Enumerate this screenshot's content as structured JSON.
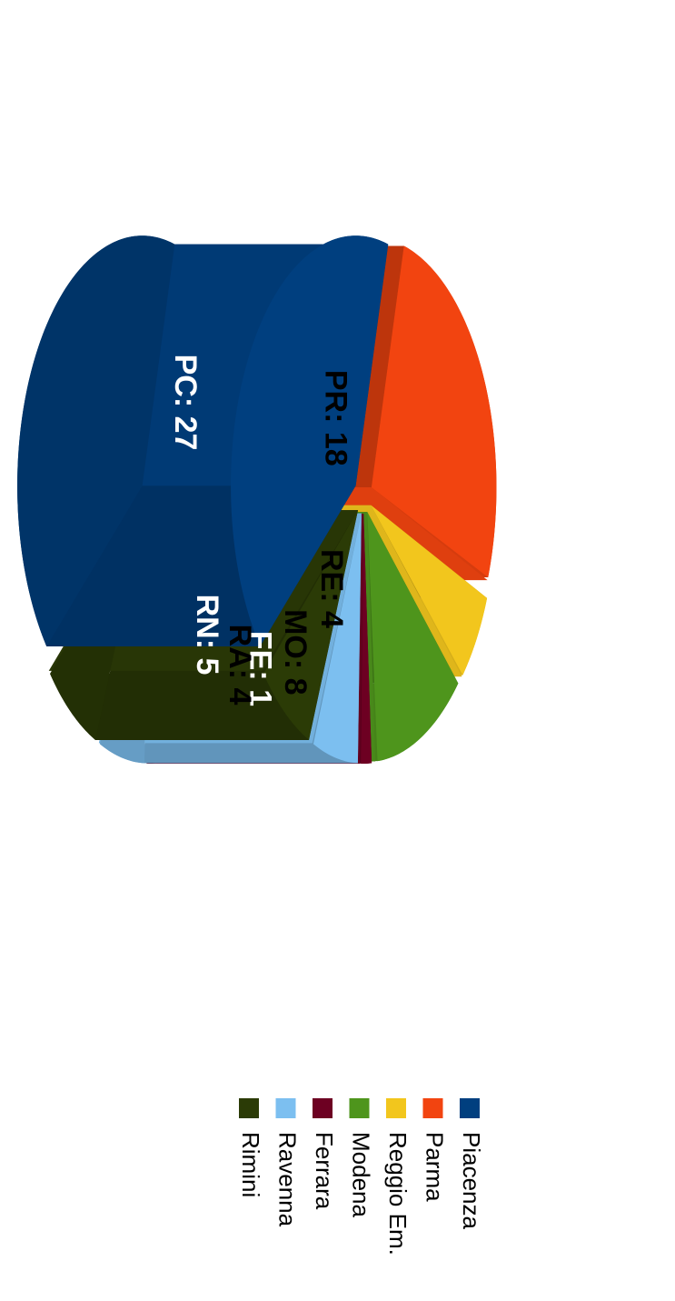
{
  "chart_data": {
    "type": "pie",
    "style": "3d-exploded",
    "orientation": "rotated 90 degrees clockwise",
    "slices": [
      {
        "code": "PC",
        "name": "Piacenza",
        "value": 27,
        "label": "PC: 27",
        "color": "#003f7f",
        "label_color": "#ffffff"
      },
      {
        "code": "PR",
        "name": "Parma",
        "value": 18,
        "label": "PR: 18",
        "color": "#f24410",
        "label_color": "#000000"
      },
      {
        "code": "RE",
        "name": "Reggio Em.",
        "value": 4,
        "label": "RE: 4",
        "color": "#f2c61d",
        "label_color": "#000000"
      },
      {
        "code": "MO",
        "name": "Modena",
        "value": 8,
        "label": "MO: 8",
        "color": "#4e951c",
        "label_color": "#000000"
      },
      {
        "code": "FE",
        "name": "Ferrara",
        "value": 1,
        "label": "FE: 1",
        "color": "#6d0022",
        "label_color": "#ffffff"
      },
      {
        "code": "RA",
        "name": "Ravenna",
        "value": 4,
        "label": "RA: 4",
        "color": "#7cbff0",
        "label_color": "#000000"
      },
      {
        "code": "RN",
        "name": "Rimini",
        "value": 5,
        "label": "RN: 5",
        "color": "#2b3b06",
        "label_color": "#ffffff"
      }
    ],
    "legend": {
      "placement": "bottom",
      "entries": [
        "Piacenza",
        "Parma",
        "Reggio Em.",
        "Modena",
        "Ferrara",
        "Ravenna",
        "Rimini"
      ]
    }
  }
}
